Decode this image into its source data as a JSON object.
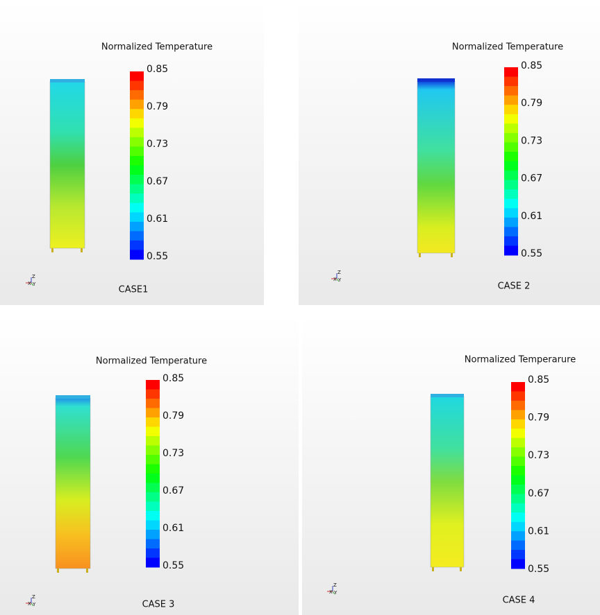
{
  "panels": [
    {
      "title": "Normalized Temperature",
      "colorbar_ticks": [
        0.85,
        0.79,
        0.73,
        0.67,
        0.61,
        0.55
      ],
      "case": "CASE1",
      "triad": [
        "Z",
        "X",
        "Y"
      ]
    },
    {
      "title": "Normalized Temperature",
      "colorbar_ticks": [
        0.85,
        0.79,
        0.73,
        0.67,
        0.61,
        0.55
      ],
      "case": "CASE 2",
      "triad": [
        "Z",
        "X",
        "Y"
      ]
    },
    {
      "title": "Normalized Temperature",
      "colorbar_ticks": [
        0.85,
        0.79,
        0.73,
        0.67,
        0.61,
        0.55
      ],
      "case": "CASE 3",
      "triad": [
        "Z",
        "X",
        "Y"
      ]
    },
    {
      "title": "Normalized Temperarure",
      "colorbar_ticks": [
        0.85,
        0.79,
        0.73,
        0.67,
        0.61,
        0.55
      ],
      "case": "CASE 4",
      "triad": [
        "Z",
        "X",
        "Y"
      ]
    }
  ]
}
